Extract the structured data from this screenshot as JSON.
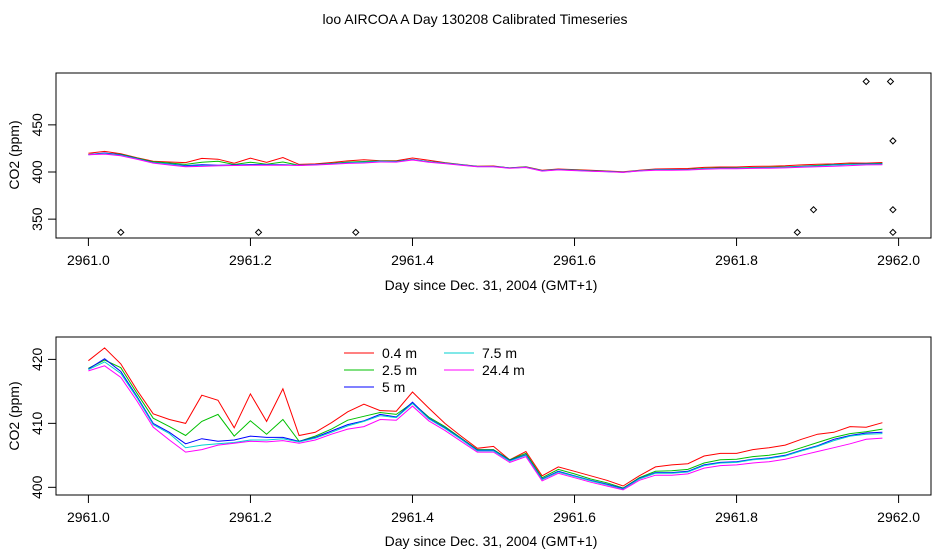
{
  "title": "loo AIRCOA A  Day 130208  Calibrated Timeseries",
  "chart_data": [
    {
      "type": "scatter",
      "xlabel": "Day since Dec. 31, 2004 (GMT+1)",
      "ylabel": "CO2 (ppm)",
      "xlim": [
        2960.96,
        2962.04
      ],
      "ylim": [
        330,
        505
      ],
      "x_ticks": [
        "2961.0",
        "2961.2",
        "2961.4",
        "2961.6",
        "2961.8",
        "2962.0"
      ],
      "y_ticks": [
        "350",
        "400",
        "450"
      ],
      "y_tick_values": [
        350,
        400,
        450
      ],
      "grid": false,
      "series": [
        {
          "name": "0.4 m",
          "color": "#ff0000",
          "x": [
            2961.0,
            2961.02,
            2961.04,
            2961.06,
            2961.08,
            2961.1,
            2961.12,
            2961.14,
            2961.16,
            2961.18,
            2961.2,
            2961.22,
            2961.24,
            2961.26,
            2961.28,
            2961.3,
            2961.32,
            2961.34,
            2961.36,
            2961.38,
            2961.4,
            2961.42,
            2961.44,
            2961.46,
            2961.48,
            2961.5,
            2961.52,
            2961.54,
            2961.56,
            2961.58,
            2961.6,
            2961.62,
            2961.64,
            2961.66,
            2961.68,
            2961.7,
            2961.72,
            2961.74,
            2961.76,
            2961.78,
            2961.8,
            2961.82,
            2961.84,
            2961.86,
            2961.88,
            2961.9,
            2961.92,
            2961.94,
            2961.96,
            2961.98
          ],
          "y": [
            419.8,
            421.8,
            419.3,
            415.2,
            411.5,
            410.6,
            410.0,
            414.4,
            413.6,
            409.3,
            414.6,
            410.3,
            415.4,
            408.1,
            408.6,
            410.1,
            411.8,
            413.0,
            412.0,
            411.9,
            414.9,
            412.4,
            410.0,
            408.0,
            406.1,
            406.4,
            404.3,
            405.6,
            401.8,
            403.2,
            402.5,
            401.8,
            401.1,
            400.2,
            401.8,
            403.2,
            403.5,
            403.7,
            404.9,
            405.3,
            405.3,
            405.9,
            406.2,
            406.6,
            407.5,
            408.3,
            408.6,
            409.5,
            409.4,
            410.1
          ]
        },
        {
          "name": "2.5 m",
          "color": "#00c000",
          "x": [
            2961.0,
            2961.02,
            2961.04,
            2961.06,
            2961.08,
            2961.1,
            2961.12,
            2961.14,
            2961.16,
            2961.18,
            2961.2,
            2961.22,
            2961.24,
            2961.26,
            2961.28,
            2961.3,
            2961.32,
            2961.34,
            2961.36,
            2961.38,
            2961.4,
            2961.42,
            2961.44,
            2961.46,
            2961.48,
            2961.5,
            2961.52,
            2961.54,
            2961.56,
            2961.58,
            2961.6,
            2961.62,
            2961.64,
            2961.66,
            2961.68,
            2961.7,
            2961.72,
            2961.74,
            2961.76,
            2961.78,
            2961.8,
            2961.82,
            2961.84,
            2961.86,
            2961.88,
            2961.9,
            2961.92,
            2961.94,
            2961.96,
            2961.98
          ],
          "y": [
            418.6,
            419.9,
            418.7,
            414.7,
            410.8,
            409.5,
            408.1,
            410.3,
            411.4,
            408.0,
            410.4,
            408.3,
            410.6,
            407.2,
            408.0,
            409.1,
            410.5,
            411.1,
            411.7,
            411.4,
            413.2,
            411.0,
            409.5,
            407.7,
            405.9,
            405.9,
            404.3,
            405.3,
            401.5,
            402.8,
            402.1,
            401.3,
            400.7,
            399.9,
            401.5,
            402.5,
            402.6,
            402.8,
            403.8,
            404.3,
            404.4,
            404.8,
            405.0,
            405.4,
            406.2,
            407.0,
            407.8,
            408.4,
            408.7,
            409.1
          ]
        },
        {
          "name": "5 m",
          "color": "#0000ff",
          "x": [
            2961.0,
            2961.02,
            2961.04,
            2961.06,
            2961.08,
            2961.1,
            2961.12,
            2961.14,
            2961.16,
            2961.18,
            2961.2,
            2961.22,
            2961.24,
            2961.26,
            2961.28,
            2961.3,
            2961.32,
            2961.34,
            2961.36,
            2961.38,
            2961.4,
            2961.42,
            2961.44,
            2961.46,
            2961.48,
            2961.5,
            2961.52,
            2961.54,
            2961.56,
            2961.58,
            2961.6,
            2961.62,
            2961.64,
            2961.66,
            2961.68,
            2961.7,
            2961.72,
            2961.74,
            2961.76,
            2961.78,
            2961.8,
            2961.82,
            2961.84,
            2961.86,
            2961.88,
            2961.9,
            2961.92,
            2961.94,
            2961.96,
            2961.98
          ],
          "y": [
            418.5,
            420.1,
            418.1,
            414.2,
            410.0,
            408.6,
            406.8,
            407.6,
            407.2,
            407.4,
            408.0,
            407.8,
            407.8,
            407.2,
            407.8,
            408.8,
            409.8,
            410.4,
            411.4,
            411.0,
            413.3,
            410.8,
            409.3,
            407.6,
            405.8,
            405.8,
            404.2,
            405.1,
            401.3,
            402.5,
            401.8,
            401.1,
            400.5,
            399.8,
            401.4,
            402.3,
            402.3,
            402.5,
            403.5,
            403.9,
            404.0,
            404.4,
            404.6,
            405.0,
            405.8,
            406.5,
            407.5,
            408.1,
            408.5,
            408.6
          ]
        },
        {
          "name": "7.5 m",
          "color": "#00d0d0",
          "x": [
            2961.0,
            2961.02,
            2961.04,
            2961.06,
            2961.08,
            2961.1,
            2961.12,
            2961.14,
            2961.16,
            2961.18,
            2961.2,
            2961.22,
            2961.24,
            2961.26,
            2961.28,
            2961.3,
            2961.32,
            2961.34,
            2961.36,
            2961.38,
            2961.4,
            2961.42,
            2961.44,
            2961.46,
            2961.48,
            2961.5,
            2961.52,
            2961.54,
            2961.56,
            2961.58,
            2961.6,
            2961.62,
            2961.64,
            2961.66,
            2961.68,
            2961.7,
            2961.72,
            2961.74,
            2961.76,
            2961.78,
            2961.8,
            2961.82,
            2961.84,
            2961.86,
            2961.88,
            2961.9,
            2961.92,
            2961.94,
            2961.96,
            2961.98
          ],
          "y": [
            418.4,
            419.6,
            417.8,
            414.0,
            409.8,
            408.4,
            406.2,
            406.6,
            406.8,
            407.0,
            407.4,
            407.4,
            407.6,
            407.1,
            407.7,
            408.6,
            409.6,
            410.3,
            411.2,
            410.9,
            413.1,
            410.7,
            409.2,
            407.5,
            405.7,
            405.7,
            404.1,
            405.0,
            401.2,
            402.4,
            401.7,
            401.0,
            400.4,
            399.7,
            401.3,
            402.2,
            402.2,
            402.4,
            403.4,
            403.8,
            403.9,
            404.3,
            404.5,
            404.9,
            405.7,
            406.4,
            407.3,
            408.0,
            408.3,
            408.4
          ]
        },
        {
          "name": "24.4 m",
          "color": "#ff00ff",
          "x": [
            2961.0,
            2961.02,
            2961.04,
            2961.06,
            2961.08,
            2961.1,
            2961.12,
            2961.14,
            2961.16,
            2961.18,
            2961.2,
            2961.22,
            2961.24,
            2961.26,
            2961.28,
            2961.3,
            2961.32,
            2961.34,
            2961.36,
            2961.38,
            2961.4,
            2961.42,
            2961.44,
            2961.46,
            2961.48,
            2961.5,
            2961.52,
            2961.54,
            2961.56,
            2961.58,
            2961.6,
            2961.62,
            2961.64,
            2961.66,
            2961.68,
            2961.7,
            2961.72,
            2961.74,
            2961.76,
            2961.78,
            2961.8,
            2961.82,
            2961.84,
            2961.86,
            2961.88,
            2961.9,
            2961.92,
            2961.94,
            2961.96,
            2961.98
          ],
          "y": [
            418.2,
            419.0,
            417.2,
            413.5,
            409.4,
            407.4,
            405.5,
            405.9,
            406.6,
            406.9,
            407.2,
            407.1,
            407.3,
            406.9,
            407.4,
            408.3,
            409.1,
            409.5,
            410.6,
            410.5,
            412.7,
            410.4,
            408.9,
            407.2,
            405.5,
            405.5,
            403.9,
            404.8,
            401.0,
            402.2,
            401.5,
            400.8,
            400.2,
            399.6,
            401.1,
            401.9,
            401.9,
            402.1,
            403.0,
            403.4,
            403.5,
            403.8,
            404.0,
            404.4,
            405.0,
            405.6,
            406.2,
            406.8,
            407.5,
            407.7
          ]
        }
      ],
      "outliers": {
        "x": [
          2961.04,
          2961.21,
          2961.33,
          2961.875,
          2961.895,
          2961.96,
          2961.99,
          2961.993,
          2961.993,
          2961.993
        ],
        "y": [
          336,
          336,
          336,
          336,
          360,
          496,
          496,
          433,
          360,
          336
        ]
      }
    },
    {
      "type": "line",
      "xlabel": "Day since Dec. 31, 2004 (GMT+1)",
      "ylabel": "CO2 (ppm)",
      "xlim": [
        2960.96,
        2962.04
      ],
      "ylim": [
        398.8,
        423.5
      ],
      "x_ticks": [
        "2961.0",
        "2961.2",
        "2961.4",
        "2961.6",
        "2961.8",
        "2962.0"
      ],
      "y_ticks": [
        "400",
        "410",
        "420"
      ],
      "y_tick_values": [
        400,
        410,
        420
      ],
      "grid": false,
      "legend_position": "top-center",
      "legend": [
        "0.4 m",
        "2.5 m",
        "5 m",
        "7.5 m",
        "24.4 m"
      ],
      "series_ref": "same as chart 1 series"
    }
  ]
}
